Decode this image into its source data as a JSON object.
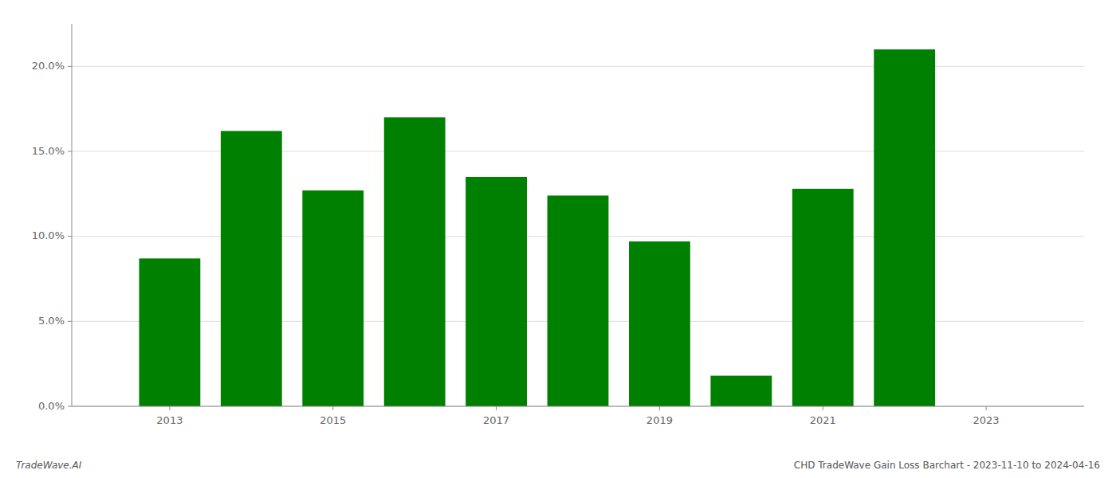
{
  "chart_data": {
    "type": "bar",
    "x": [
      2013,
      2014,
      2015,
      2016,
      2017,
      2018,
      2019,
      2020,
      2021,
      2022
    ],
    "values": [
      0.087,
      0.162,
      0.127,
      0.17,
      0.135,
      0.124,
      0.097,
      0.018,
      0.128,
      0.21
    ],
    "color": "#008000",
    "xlim": [
      2011.8,
      2024.2
    ],
    "xticks": [
      2013,
      2015,
      2017,
      2019,
      2021,
      2023
    ],
    "ylim": [
      0.0,
      0.225
    ],
    "yticks": [
      {
        "value": 0.0,
        "label": "0.0%"
      },
      {
        "value": 0.05,
        "label": "5.0%"
      },
      {
        "value": 0.1,
        "label": "10.0%"
      },
      {
        "value": 0.15,
        "label": "15.0%"
      },
      {
        "value": 0.2,
        "label": "20.0%"
      }
    ],
    "grid": true,
    "annotations": [
      "TradeWave.AI",
      "CHD TradeWave Gain Loss Barchart - 2023-11-10 to 2024-04-16"
    ]
  }
}
